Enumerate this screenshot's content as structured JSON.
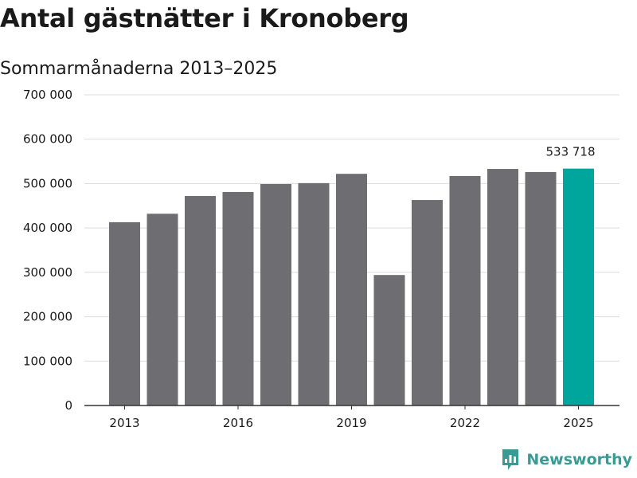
{
  "header": {
    "title": "Antal gästnätter i Kronoberg",
    "subtitle": "Sommarmånaderna 2013–2025"
  },
  "brand": {
    "name": "Newsworthy",
    "logo_icon": "newsworthy-chart-icon",
    "color": "#3a9b94"
  },
  "chart_data": {
    "type": "bar",
    "title": "Antal gästnätter i Kronoberg",
    "subtitle": "Sommarmånaderna 2013–2025",
    "categories": [
      "2013",
      "2014",
      "2015",
      "2016",
      "2017",
      "2018",
      "2019",
      "2020",
      "2021",
      "2022",
      "2023",
      "2024",
      "2025"
    ],
    "x_tick_labels": [
      "2013",
      "2016",
      "2019",
      "2022",
      "2025"
    ],
    "values": [
      413000,
      432000,
      472000,
      481000,
      499000,
      501000,
      522000,
      294000,
      463000,
      517000,
      533000,
      526000,
      533718
    ],
    "ylim": [
      0,
      700000
    ],
    "y_ticks": [
      0,
      100000,
      200000,
      300000,
      400000,
      500000,
      600000,
      700000
    ],
    "y_tick_labels": [
      "0",
      "100 000",
      "200 000",
      "300 000",
      "400 000",
      "500 000",
      "600 000",
      "700 000"
    ],
    "highlight": {
      "category": "2025",
      "label": "533 718"
    },
    "colors": {
      "bar": "#6e6d72",
      "highlight": "#00a69c",
      "grid": "#dddddd",
      "axis": "#333333"
    },
    "grid": true,
    "legend": "none",
    "xlabel": "",
    "ylabel": ""
  }
}
